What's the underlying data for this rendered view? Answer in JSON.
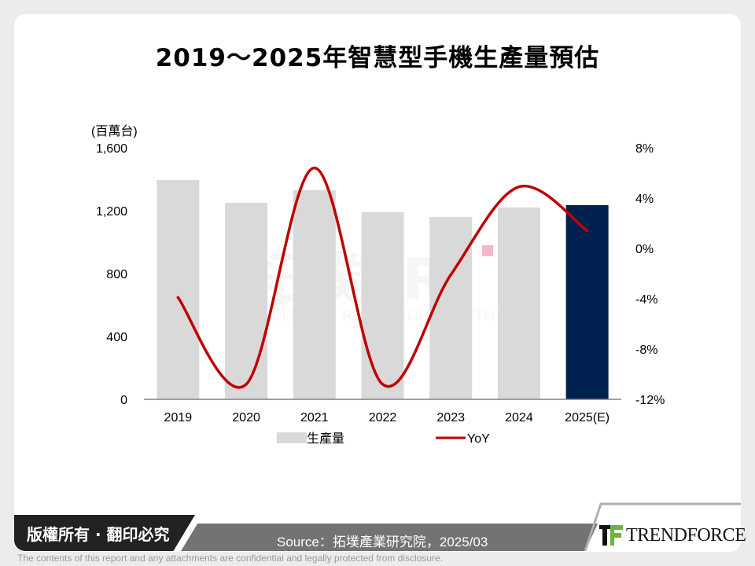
{
  "title": "2019～2025年智慧型手機生產量預估",
  "chart_data": {
    "type": "bar+line",
    "categories": [
      "2019",
      "2020",
      "2021",
      "2022",
      "2023",
      "2024",
      "2025(E)"
    ],
    "series": [
      {
        "name": "生產量",
        "type": "bar",
        "axis": "left",
        "values": [
          1395,
          1250,
          1330,
          1190,
          1160,
          1220,
          1235
        ],
        "color": "#d9d9d9",
        "highlight_color": "#002050"
      },
      {
        "name": "YoY",
        "type": "line",
        "axis": "right",
        "unit": "%",
        "values": [
          -3.9,
          -10.8,
          6.4,
          -10.8,
          -2.1,
          4.9,
          1.4
        ],
        "color": "#c00000"
      }
    ],
    "ylabel": "(百萬台)",
    "ylim": [
      0,
      1600
    ],
    "yticks": [
      "0",
      "400",
      "800",
      "1,200",
      "1,600"
    ],
    "y2lim": [
      -12,
      8
    ],
    "y2ticks": [
      "-12%",
      "-8%",
      "-4%",
      "0%",
      "4%",
      "8%"
    ],
    "legend": "bottom",
    "grid": false
  },
  "watermark": {
    "text": "拓墣TRI",
    "subtext": "TOPOLOGY RESEARCH INSTITUTE"
  },
  "footer": {
    "copyright": "版權所有 · 翻印必究",
    "source": "Source：拓墣產業研究院，2025/03",
    "logo": "TRENDFORCE",
    "disclaimer": "The contents of this report and any attachments are confidential and legally protected from disclosure."
  }
}
